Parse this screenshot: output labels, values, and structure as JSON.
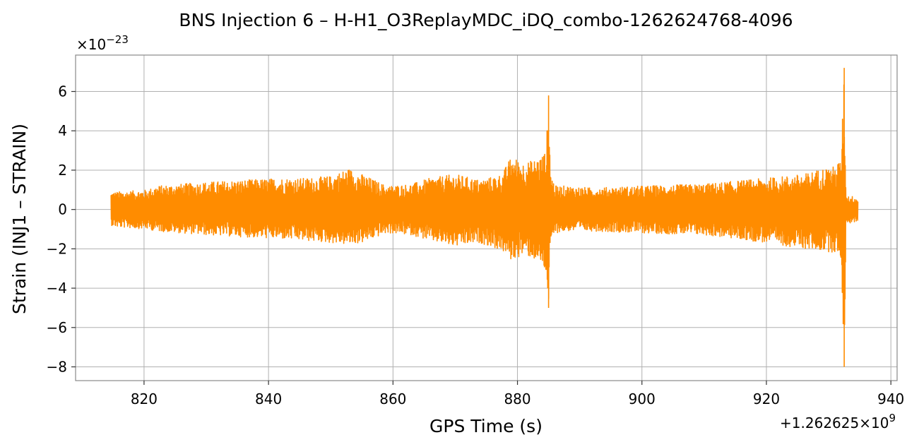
{
  "chart_data": {
    "type": "line",
    "title": "BNS Injection 6 – H-H1_O3ReplayMDC_iDQ_combo-1262624768-4096",
    "xlabel": "GPS Time (s)",
    "ylabel": "Strain (INJ1 – STRAIN)",
    "x_offset_label": "+1.262625×10",
    "x_offset_exponent": "9",
    "y_scale_label": "×10",
    "y_scale_exponent": "−23",
    "xlim": [
      809,
      941
    ],
    "ylim": [
      -8.7,
      7.85
    ],
    "xticks": [
      820,
      840,
      860,
      880,
      900,
      920,
      940
    ],
    "xtick_labels": [
      "820",
      "840",
      "860",
      "880",
      "900",
      "920",
      "940"
    ],
    "yticks": [
      -8,
      -6,
      -4,
      -2,
      0,
      2,
      4,
      6
    ],
    "ytick_labels": [
      "−8",
      "−6",
      "−4",
      "−2",
      "0",
      "2",
      "4",
      "6"
    ],
    "grid": true,
    "line_color": "#ff8c00",
    "series": [
      {
        "envelope_x": [
          814.7,
          815.5,
          820.5,
          822,
          826,
          830,
          836,
          842,
          846,
          850,
          852.8,
          855,
          859,
          863,
          866,
          870,
          874,
          877.5,
          879,
          881,
          882.5,
          884,
          884.6,
          885.0,
          885.3,
          886,
          888,
          892,
          900,
          910,
          920,
          926,
          929,
          931,
          932.0,
          932.5,
          932.8,
          933.5,
          934.7
        ],
        "envelope_upper": [
          0.9,
          0.9,
          1.0,
          1.2,
          1.3,
          1.4,
          1.5,
          1.6,
          1.6,
          1.7,
          2.1,
          1.8,
          1.2,
          1.3,
          1.6,
          1.8,
          1.5,
          1.8,
          2.7,
          2.4,
          2.5,
          2.8,
          3.0,
          5.8,
          2.0,
          1.2,
          1.2,
          1.1,
          1.2,
          1.3,
          1.6,
          1.8,
          2.1,
          2.2,
          2.6,
          7.2,
          0.7,
          0.7,
          0.6
        ],
        "envelope_lower": [
          -0.8,
          -0.9,
          -1.0,
          -1.1,
          -1.2,
          -1.3,
          -1.4,
          -1.5,
          -1.6,
          -1.7,
          -1.8,
          -1.7,
          -1.2,
          -1.3,
          -1.6,
          -1.9,
          -1.7,
          -2.1,
          -2.6,
          -2.3,
          -2.5,
          -2.9,
          -3.3,
          -5.0,
          -1.9,
          -1.2,
          -1.1,
          -1.1,
          -1.2,
          -1.3,
          -1.7,
          -2.0,
          -2.1,
          -2.2,
          -2.5,
          -8.0,
          -0.7,
          -0.7,
          -0.6
        ]
      }
    ]
  }
}
